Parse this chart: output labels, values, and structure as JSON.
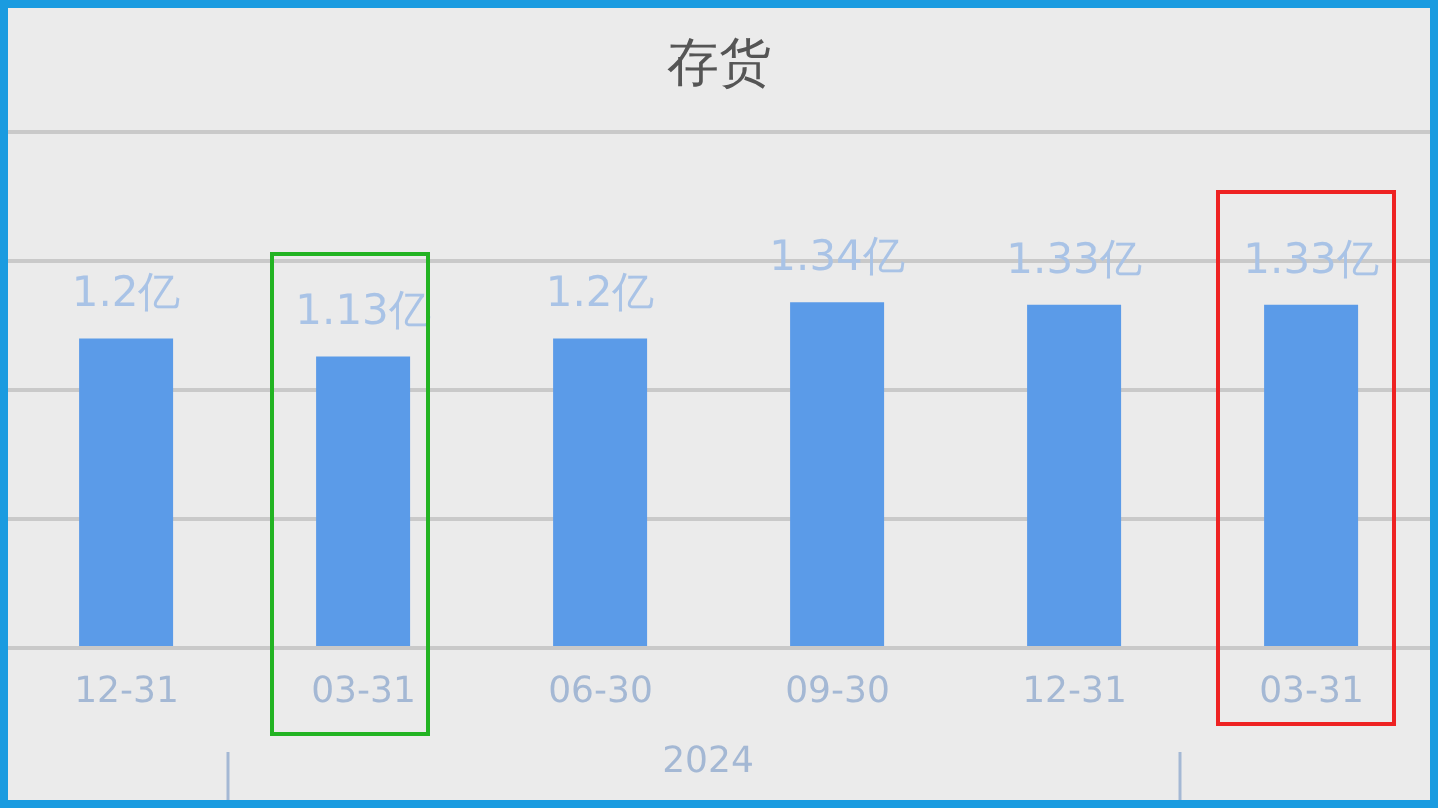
{
  "chart_data": {
    "type": "bar",
    "title": "存货",
    "categories": [
      "12-31",
      "03-31",
      "06-30",
      "09-30",
      "12-31",
      "03-31"
    ],
    "values": [
      1.2,
      1.13,
      1.2,
      1.34,
      1.33,
      1.33
    ],
    "value_labels": [
      "1.2亿",
      "1.13亿",
      "1.2亿",
      "1.34亿",
      "1.33亿",
      "1.33亿"
    ],
    "color": "#5b9be8",
    "ylim": [
      0,
      2
    ],
    "yticks": [
      {
        "value": 0,
        "label": null
      },
      {
        "value": 0.5,
        "label": null
      },
      {
        "value": 1,
        "label": null
      },
      {
        "value": 1.5,
        "label": null
      },
      {
        "value": 2,
        "label": null
      }
    ],
    "tick_labels": "x",
    "grid": "y",
    "legend": false,
    "annotations": [
      "2024"
    ]
  }
}
